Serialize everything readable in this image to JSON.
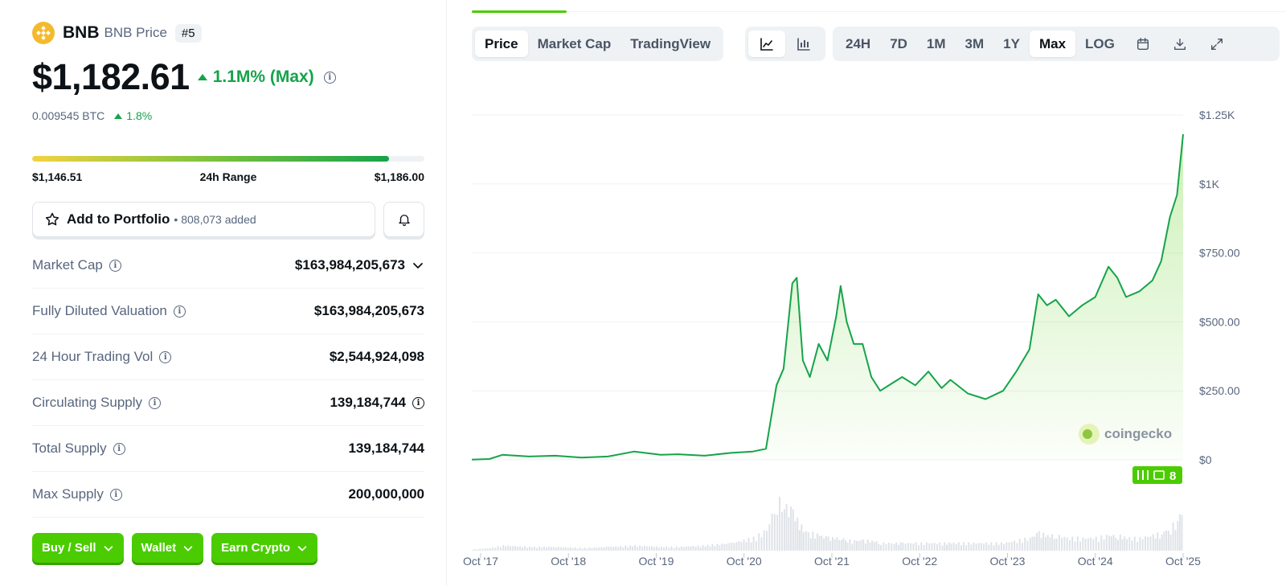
{
  "coin": {
    "symbol": "BNB",
    "name": "BNB Price",
    "rank": "#5",
    "price": "$1,182.61",
    "change": "1.1M% (Max)",
    "btc_price": "0.009545 BTC",
    "btc_change": "1.8%"
  },
  "range": {
    "low": "$1,146.51",
    "label": "24h Range",
    "high": "$1,186.00",
    "position_percent": 91
  },
  "portfolio": {
    "button_label": "Add to Portfolio",
    "count": "• 808,073 added"
  },
  "stats": [
    {
      "label": "Market Cap",
      "value": "$163,984,205,673"
    },
    {
      "label": "Fully Diluted Valuation",
      "value": "$163,984,205,673"
    },
    {
      "label": "24 Hour Trading Vol",
      "value": "$2,544,924,098"
    },
    {
      "label": "Circulating Supply",
      "value": "139,184,744"
    },
    {
      "label": "Total Supply",
      "value": "139,184,744"
    },
    {
      "label": "Max Supply",
      "value": "200,000,000"
    }
  ],
  "actions": [
    "Buy / Sell",
    "Wallet",
    "Earn Crypto"
  ],
  "chart_tabs": [
    "Price",
    "Market Cap",
    "TradingView"
  ],
  "chart_tab_active": "Price",
  "chart_view_icons": [
    "line-chart-icon",
    "candlestick-icon"
  ],
  "time_ranges": [
    "24H",
    "7D",
    "1M",
    "3M",
    "1Y",
    "Max",
    "LOG"
  ],
  "time_range_active": "Max",
  "tool_icons": [
    "calendar-icon",
    "download-icon",
    "expand-icon"
  ],
  "watermark": "coingecko",
  "news_badge": "8",
  "colors": {
    "accent": "#4bcc00",
    "up": "#16a34a",
    "bnb": "#f3ba2f"
  },
  "chart_data": {
    "type": "area",
    "x_unit": "years",
    "x": [
      2017.65,
      2017.85,
      2018.0,
      2018.3,
      2018.6,
      2018.9,
      2019.2,
      2019.5,
      2019.8,
      2020.0,
      2020.3,
      2020.6,
      2020.85,
      2021.0,
      2021.12,
      2021.2,
      2021.3,
      2021.35,
      2021.42,
      2021.5,
      2021.6,
      2021.7,
      2021.8,
      2021.85,
      2021.92,
      2022.0,
      2022.1,
      2022.2,
      2022.3,
      2022.45,
      2022.55,
      2022.7,
      2022.85,
      2023.0,
      2023.1,
      2023.3,
      2023.5,
      2023.7,
      2023.85,
      2024.0,
      2024.1,
      2024.2,
      2024.3,
      2024.45,
      2024.6,
      2024.75,
      2024.9,
      2025.0,
      2025.1,
      2025.25,
      2025.4,
      2025.5,
      2025.6,
      2025.68,
      2025.75
    ],
    "y": [
      1,
      3,
      18,
      12,
      15,
      8,
      12,
      30,
      18,
      20,
      15,
      25,
      30,
      40,
      270,
      330,
      640,
      660,
      360,
      300,
      420,
      360,
      520,
      630,
      500,
      420,
      420,
      300,
      250,
      280,
      300,
      270,
      320,
      260,
      290,
      240,
      220,
      250,
      320,
      400,
      600,
      560,
      580,
      520,
      560,
      590,
      700,
      660,
      590,
      610,
      650,
      720,
      880,
      960,
      1180
    ],
    "volume": [
      0.5,
      1,
      2,
      1.5,
      1.5,
      1,
      1.5,
      2,
      1.5,
      1.5,
      2,
      3,
      5,
      8,
      20,
      18,
      15,
      12,
      8,
      7,
      6,
      5,
      5,
      5,
      4,
      4,
      4,
      4,
      3,
      3,
      3,
      3,
      3,
      3,
      3,
      3,
      3,
      3,
      4,
      5,
      7,
      6,
      6,
      5,
      5,
      5,
      6,
      6,
      5,
      5,
      6,
      7,
      9,
      12,
      18
    ],
    "y_ticks": [
      "$0",
      "$250.00",
      "$500.00",
      "$750.00",
      "$1K",
      "$1.25K"
    ],
    "y_tick_values": [
      0,
      250,
      500,
      750,
      1000,
      1250
    ],
    "x_ticks": [
      "Oct '17",
      "Oct '18",
      "Oct '19",
      "Oct '20",
      "Oct '21",
      "Oct '22",
      "Oct '23",
      "Oct '24",
      "Oct '25"
    ],
    "x_tick_values": [
      2017.75,
      2018.75,
      2019.75,
      2020.75,
      2021.75,
      2022.75,
      2023.75,
      2024.75,
      2025.75
    ],
    "ylim": [
      0,
      1250
    ],
    "grid": true,
    "line_color": "#16a34a"
  }
}
